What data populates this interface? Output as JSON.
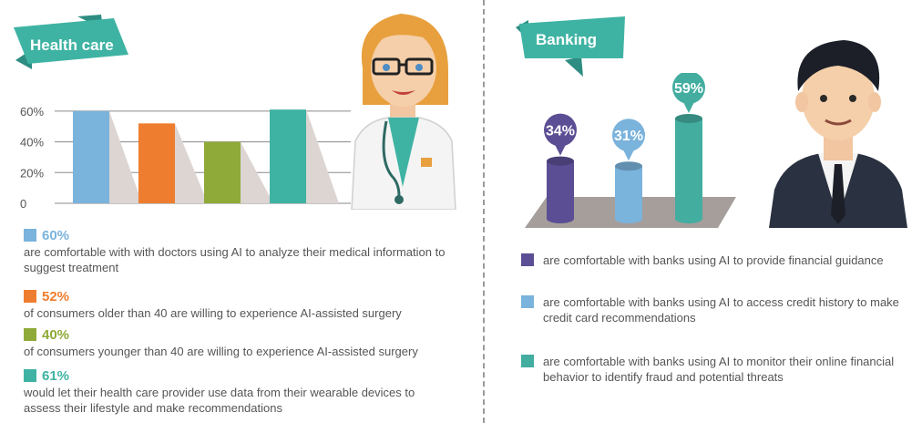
{
  "colors": {
    "teal": "#3fb3a3",
    "teal_dark": "#2e8d82",
    "blue": "#7ab3dc",
    "orange": "#ef7d2f",
    "green": "#8faa39",
    "purple": "#5b4e94",
    "shadow": "#dcd5d2",
    "banking_teal": "#43ada0"
  },
  "health": {
    "title": "Health care",
    "items": [
      {
        "pct": "60%",
        "text": "are comfortable with with doctors using AI to analyze their medical information to suggest treatment",
        "color": "#7ab3dc"
      },
      {
        "pct": "52%",
        "text": "of consumers older than 40 are willing to experience AI-assisted surgery",
        "color": "#ef7d2f"
      },
      {
        "pct": "40%",
        "text": "of consumers younger than 40 are willing to experience AI-assisted surgery",
        "color": "#8faa39"
      },
      {
        "pct": "61%",
        "text": "would let their health care provider use data from their wearable devices to assess their lifestyle and make recommendations",
        "color": "#3fb3a3"
      }
    ]
  },
  "banking": {
    "title": "Banking",
    "items": [
      {
        "text": "are comfortable with banks using AI to provide financial guidance",
        "color": "#5b4e94"
      },
      {
        "text": "are comfortable with banks using AI to access credit history to make credit card recommendations",
        "color": "#7ab3dc"
      },
      {
        "text": "are comfortable with banks using AI to monitor their online financial behavior to identify fraud and potential threats",
        "color": "#43ada0"
      }
    ]
  },
  "chart_data": [
    {
      "type": "bar",
      "categories": [
        "",
        "",
        "",
        ""
      ],
      "values": [
        60,
        52,
        40,
        61
      ],
      "colors": [
        "#7ab3dc",
        "#ef7d2f",
        "#8faa39",
        "#3fb3a3"
      ],
      "yticks": [
        "0",
        "20%",
        "40%",
        "60%"
      ],
      "ylim": [
        0,
        70
      ],
      "grid": true
    },
    {
      "type": "bar",
      "categories": [
        "",
        "",
        ""
      ],
      "values": [
        34,
        31,
        59
      ],
      "labels": [
        "34%",
        "31%",
        "59%"
      ],
      "colors": [
        "#5b4e94",
        "#7ab3dc",
        "#43ada0"
      ]
    }
  ]
}
